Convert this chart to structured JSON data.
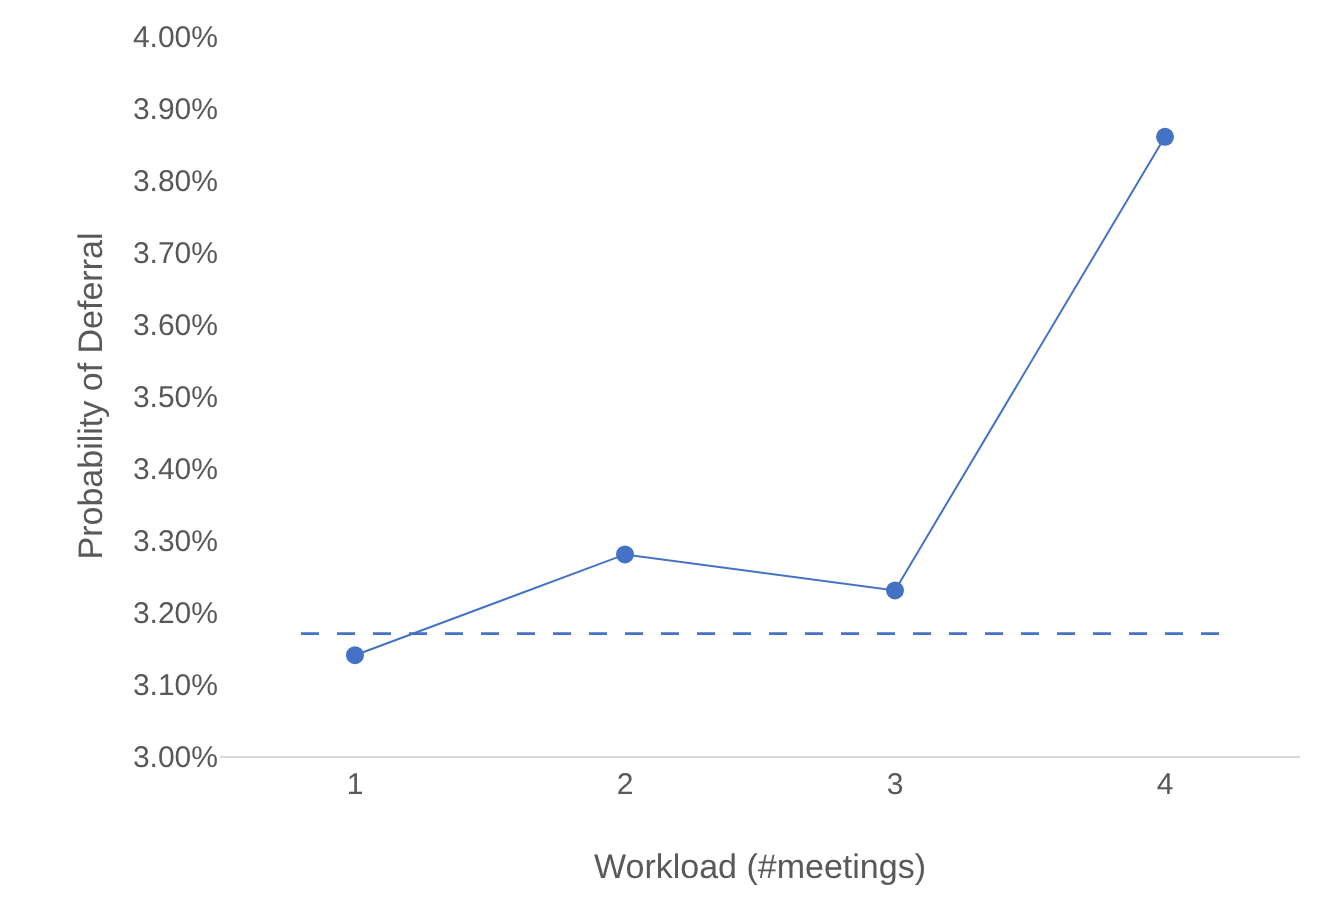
{
  "chart_data": {
    "type": "line",
    "xlabel": "Workload (#meetings)",
    "ylabel": "Probability of Deferral",
    "categories": [
      "1",
      "2",
      "3",
      "4"
    ],
    "series": [
      {
        "color": "#4472c4",
        "values": [
          3.14,
          3.28,
          3.23,
          3.86
        ]
      }
    ],
    "ylim": [
      3,
      4
    ],
    "yticks": [
      {
        "value": 3,
        "label": "3.00%"
      },
      {
        "value": 3.1,
        "label": "3.10%"
      },
      {
        "value": 3.2,
        "label": "3.20%"
      },
      {
        "value": 3.3,
        "label": "3.30%"
      },
      {
        "value": 3.4,
        "label": "3.40%"
      },
      {
        "value": 3.5,
        "label": "3.50%"
      },
      {
        "value": 3.6,
        "label": "3.60%"
      },
      {
        "value": 3.7,
        "label": "3.70%"
      },
      {
        "value": 3.8,
        "label": "3.80%"
      },
      {
        "value": 3.9,
        "label": "3.90%"
      },
      {
        "value": 4,
        "label": "4.00%"
      }
    ],
    "ref_lines": [
      {
        "axis": "y",
        "value": 3.17,
        "color": "#4472c4",
        "line_style": "dashed"
      }
    ],
    "grid": false,
    "marker": "circle",
    "line_style": "solid"
  }
}
